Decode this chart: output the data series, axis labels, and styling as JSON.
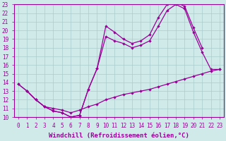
{
  "xlabel": "Windchill (Refroidissement éolien,°C)",
  "ylabel": "",
  "xlim": [
    -0.5,
    23.5
  ],
  "ylim": [
    10,
    23
  ],
  "xticks": [
    0,
    1,
    2,
    3,
    4,
    5,
    6,
    7,
    8,
    9,
    10,
    11,
    12,
    13,
    14,
    15,
    16,
    17,
    18,
    19,
    20,
    21,
    22,
    23
  ],
  "yticks": [
    10,
    11,
    12,
    13,
    14,
    15,
    16,
    17,
    18,
    19,
    20,
    21,
    22,
    23
  ],
  "bg_color": "#d0eaea",
  "grid_color": "#aacccc",
  "line_color": "#990099",
  "line1_x": [
    0,
    1,
    2,
    3,
    4,
    5,
    6,
    7,
    8,
    9,
    10,
    11,
    12,
    13,
    14,
    15,
    16,
    17,
    18,
    19,
    20,
    21
  ],
  "line1_y": [
    13.8,
    13.0,
    12.0,
    11.2,
    10.7,
    10.5,
    10.0,
    10.2,
    13.2,
    15.6,
    20.5,
    19.8,
    19.0,
    18.5,
    18.8,
    19.5,
    21.5,
    23.0,
    23.2,
    22.8,
    20.3,
    18.0
  ],
  "line2_x": [
    0,
    1,
    2,
    3,
    4,
    5,
    6,
    7,
    8,
    9,
    10,
    11,
    12,
    13,
    14,
    15,
    16,
    17,
    18,
    19,
    20,
    21,
    22,
    23
  ],
  "line2_y": [
    13.8,
    13.0,
    12.0,
    11.2,
    10.7,
    10.5,
    10.0,
    10.2,
    13.2,
    15.6,
    19.3,
    18.8,
    18.5,
    18.0,
    18.3,
    18.8,
    20.5,
    22.3,
    23.0,
    22.5,
    19.8,
    17.5,
    15.5,
    15.5
  ],
  "line3_x": [
    1,
    2,
    3,
    4,
    5,
    6,
    7,
    8,
    9,
    10,
    11,
    12,
    13,
    14,
    15,
    16,
    17,
    18,
    19,
    20,
    21,
    22,
    23
  ],
  "line3_y": [
    13.0,
    12.0,
    11.2,
    11.0,
    10.8,
    10.5,
    10.8,
    11.2,
    11.5,
    12.0,
    12.3,
    12.6,
    12.8,
    13.0,
    13.2,
    13.5,
    13.8,
    14.1,
    14.4,
    14.7,
    15.0,
    15.3,
    15.5
  ],
  "font_family": "monospace",
  "xlabel_fontsize": 6.5,
  "tick_fontsize": 5.5
}
